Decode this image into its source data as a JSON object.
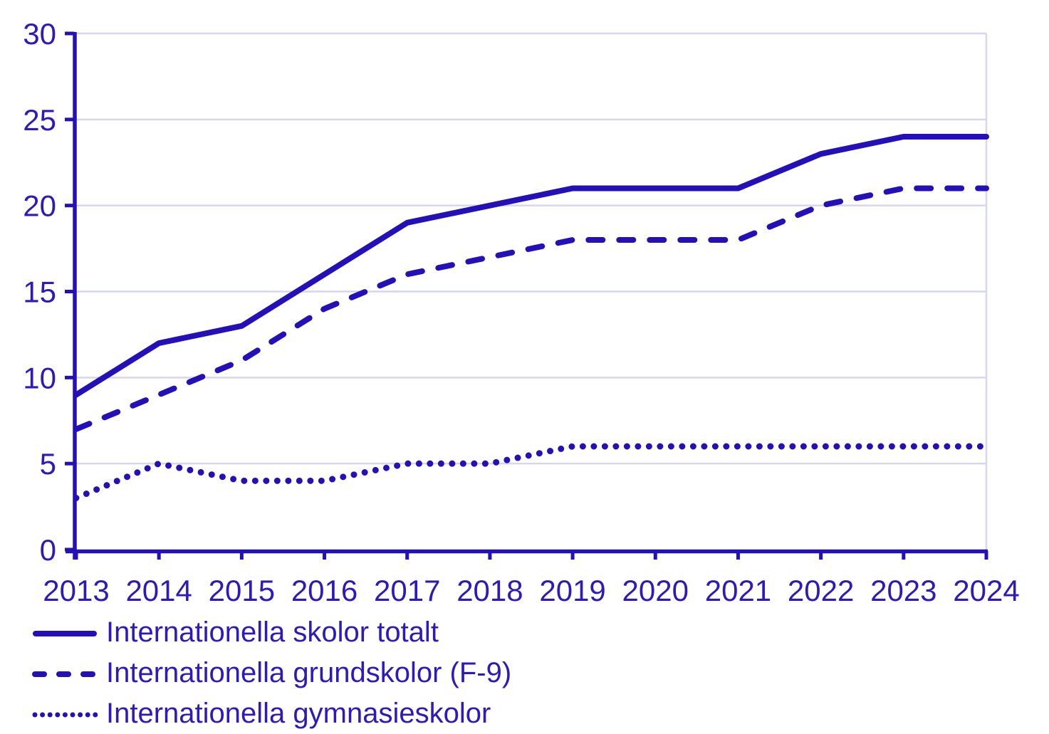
{
  "colors": {
    "line": "#2310b8",
    "text": "#2c1abc",
    "grid": "#d6d6f0",
    "background": "#ffffff"
  },
  "chart_data": {
    "type": "line",
    "title": "",
    "xlabel": "",
    "ylabel": "",
    "x": [
      2013,
      2014,
      2015,
      2016,
      2017,
      2018,
      2019,
      2020,
      2021,
      2022,
      2023,
      2024
    ],
    "series": [
      {
        "name": "Internationella skolor totalt",
        "style": "solid",
        "values": [
          9,
          12,
          13,
          16,
          19,
          20,
          21,
          21,
          21,
          23,
          24,
          24
        ]
      },
      {
        "name": "Internationella grundskolor (F-9)",
        "style": "dashed",
        "values": [
          7,
          9,
          11,
          14,
          16,
          17,
          18,
          18,
          18,
          20,
          21,
          21
        ]
      },
      {
        "name": "Internationella gymnasieskolor",
        "style": "dotted",
        "values": [
          3,
          5,
          4,
          4,
          5,
          5,
          6,
          6,
          6,
          6,
          6,
          6
        ]
      }
    ],
    "ylim": [
      0,
      30
    ],
    "yticks": [
      0,
      5,
      10,
      15,
      20,
      25,
      30
    ],
    "grid": "horizontal",
    "legend_position": "below-left"
  }
}
